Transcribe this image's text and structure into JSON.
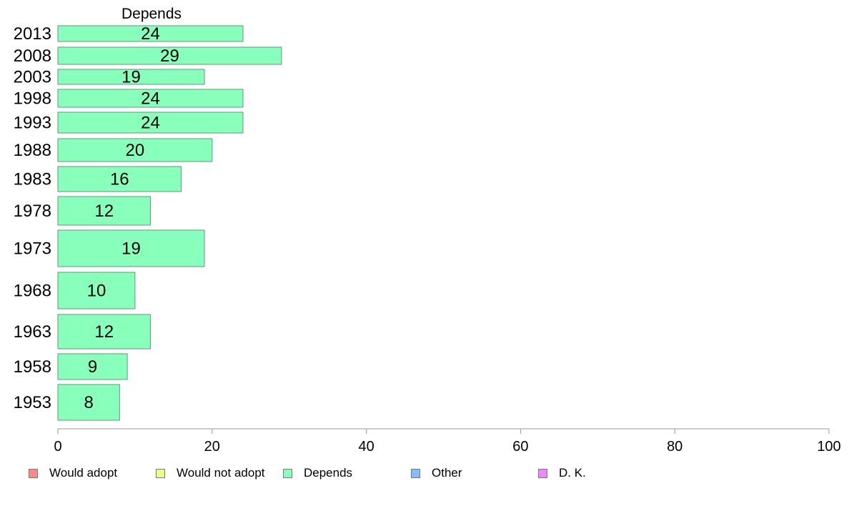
{
  "chart_data": {
    "type": "bar",
    "orientation": "horizontal",
    "title": "Depends",
    "categories": [
      "2013",
      "2008",
      "2003",
      "1998",
      "1993",
      "1988",
      "1983",
      "1978",
      "1973",
      "1968",
      "1963",
      "1958",
      "1953"
    ],
    "series": [
      {
        "name": "Depends",
        "color": "#88ffbb",
        "values": [
          24,
          29,
          19,
          24,
          24,
          20,
          16,
          12,
          19,
          10,
          12,
          9,
          8
        ]
      }
    ],
    "xlim": [
      0,
      100
    ],
    "xticks": [
      "0",
      "20",
      "40",
      "60",
      "80",
      "100"
    ],
    "grid": false,
    "legend_placement": "bottom"
  },
  "legend": {
    "items": [
      {
        "label": "Would adopt",
        "color": "#ff8888"
      },
      {
        "label": "Would not adopt",
        "color": "#eeff88"
      },
      {
        "label": "Depends",
        "color": "#88ffbb"
      },
      {
        "label": "Other",
        "color": "#88bbff"
      },
      {
        "label": "D. K.",
        "color": "#ee88ff"
      }
    ]
  }
}
